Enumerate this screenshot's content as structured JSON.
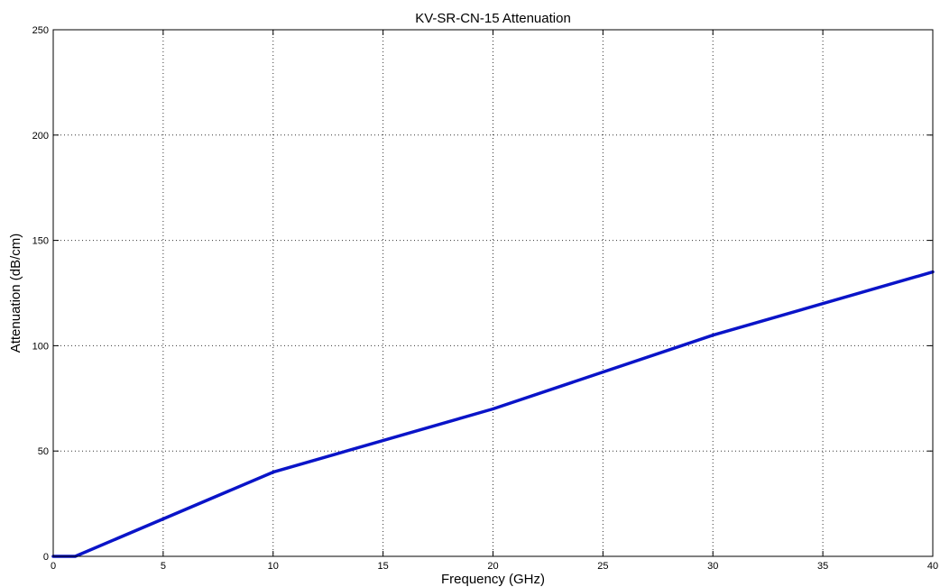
{
  "chart_data": {
    "type": "line",
    "title": "KV-SR-CN-15 Attenuation",
    "xlabel": "Frequency (GHz)",
    "ylabel": "Attenuation (dB/cm)",
    "xlim": [
      0,
      40
    ],
    "ylim": [
      0,
      250
    ],
    "xticks": [
      0,
      5,
      10,
      15,
      20,
      25,
      30,
      35,
      40
    ],
    "yticks": [
      0,
      50,
      100,
      150,
      200,
      250
    ],
    "grid": true,
    "series": [
      {
        "color": "#0a14c8",
        "x": [
          0,
          1,
          10,
          20,
          30,
          40
        ],
        "y": [
          0,
          0,
          40,
          70,
          105,
          135
        ]
      }
    ]
  }
}
